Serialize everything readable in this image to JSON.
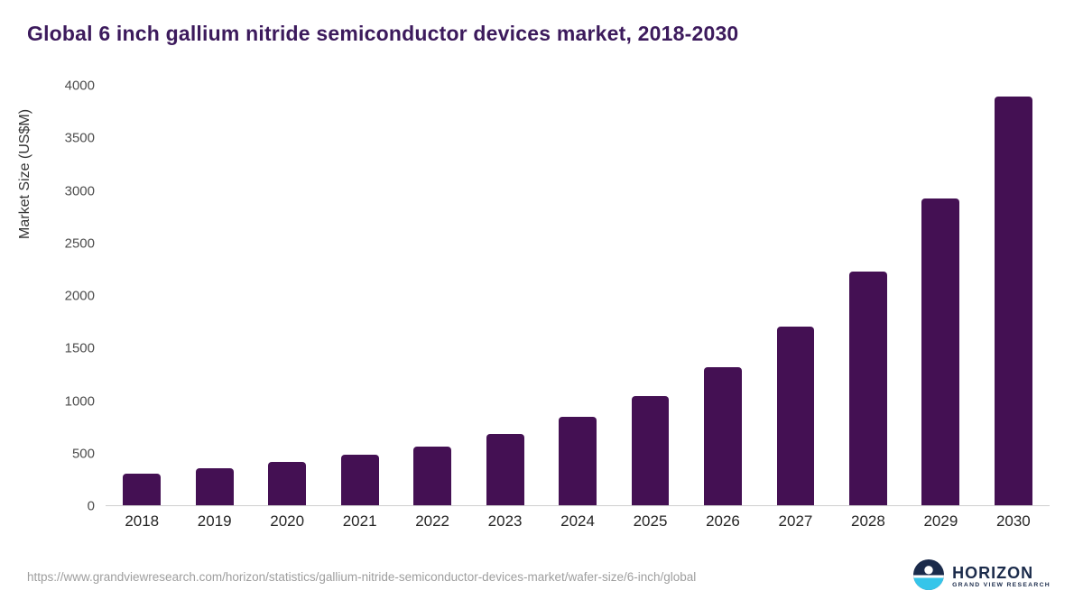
{
  "title": "Global 6 inch gallium nitride semiconductor devices market, 2018-2030",
  "source_url": "https://www.grandviewresearch.com/horizon/statistics/gallium-nitride-semiconductor-devices-market/wafer-size/6-inch/global",
  "logo": {
    "title": "HORIZON",
    "subtitle": "GRAND VIEW RESEARCH"
  },
  "colors": {
    "bar": "#441053",
    "title_text": "#3c1a5c",
    "axis_line": "#cfcfcf",
    "logo_navy": "#1b2b4b",
    "logo_cyan": "#35c5ea"
  },
  "chart_data": {
    "type": "bar",
    "title": "Global 6 inch gallium nitride semiconductor devices market, 2018-2030",
    "xlabel": "",
    "ylabel": "Market Size (US$M)",
    "categories": [
      "2018",
      "2019",
      "2020",
      "2021",
      "2022",
      "2023",
      "2024",
      "2025",
      "2026",
      "2027",
      "2028",
      "2029",
      "2030"
    ],
    "values": [
      300,
      355,
      415,
      480,
      560,
      680,
      840,
      1045,
      1315,
      1700,
      2225,
      2925,
      3900
    ],
    "ylim": [
      0,
      4000
    ],
    "yticks": [
      0,
      500,
      1000,
      1500,
      2000,
      2500,
      3000,
      3500,
      4000
    ],
    "grid": false,
    "legend": false
  }
}
